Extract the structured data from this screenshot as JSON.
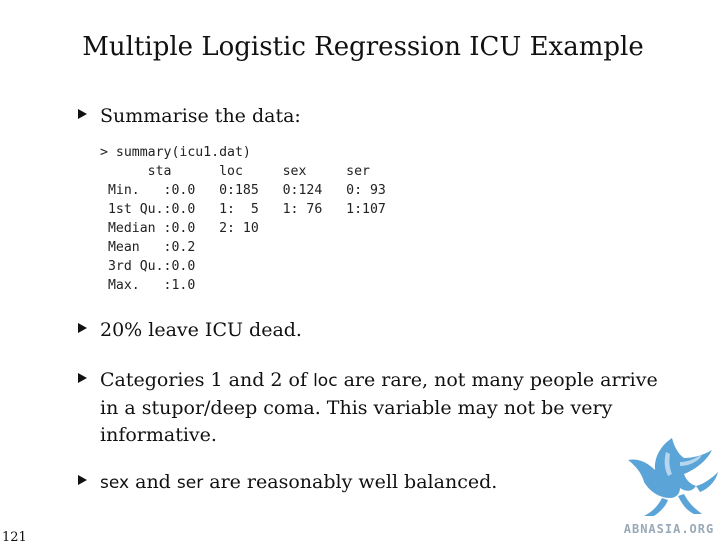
{
  "slide": {
    "title": "Multiple Logistic Regression ICU Example",
    "page_number": "121"
  },
  "bullets": [
    {
      "text": "Summarise the data:"
    },
    {
      "text": "20% leave ICU dead."
    },
    {
      "part1": "Categories 1 and 2 of ",
      "code_word": "loc",
      "part2": " are rare, not many people arrive in a stupor/deep coma. This variable may not be very informative."
    },
    {
      "code_word1": "sex",
      "part1": " and ",
      "code_word2": "ser",
      "part2": " are reasonably well balanced."
    }
  ],
  "code_lines": [
    "> summary(icu1.dat)",
    "      sta      loc     sex     ser",
    " Min.   :0.0   0:185   0:124   0: 93",
    " 1st Qu.:0.0   1:  5   1: 76   1:107",
    " Median :0.0   2: 10",
    " Mean   :0.2",
    " 3rd Qu.:0.0",
    " Max.   :1.0"
  ],
  "logo": {
    "text": "ABNASIA.ORG",
    "color": "#5ba4d8"
  }
}
